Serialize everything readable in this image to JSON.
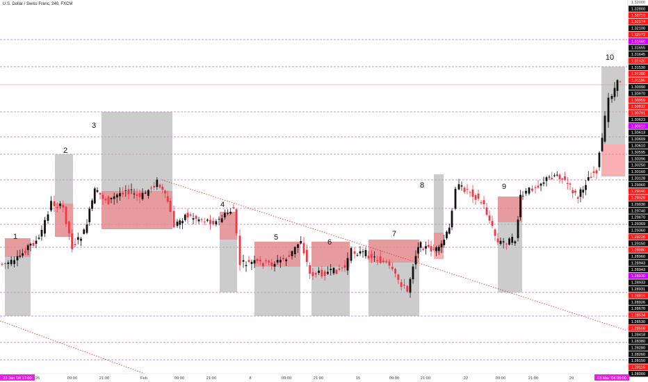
{
  "header": {
    "title": "U.S. Dollar / Swiss Franc, 240, FXCM"
  },
  "colors": {
    "bull": "#111111",
    "bear": "#f23645",
    "box_gray": "#b0b0b0",
    "box_red": "#f77c80",
    "level_line": "#9c27b0",
    "trend_line": "#e53935",
    "axis_bg": "#111111",
    "tag_red": "#ff1a1a",
    "tag_purple": "#cc00ff",
    "tag_magenta": "#e91ee9"
  },
  "chart_data": {
    "type": "candlestick",
    "title": "U.S. Dollar / Swiss Franc, 240, FXCM",
    "x_ticks": [
      "25",
      "09:00",
      "21:00",
      "Feb",
      "09:00",
      "21:00",
      "8",
      "09:00",
      "21:00",
      "15",
      "09:00",
      "21:00",
      "22",
      "09:00",
      "21:00",
      "29",
      "09:00"
    ],
    "x_start_label": "21 Jan '04  17:00",
    "x_end_label": "03 Mar '04  05:00",
    "price_labels": [
      {
        "text": "1.32000",
        "style": "plain"
      },
      {
        "text": "1.32800",
        "style": "dark"
      },
      {
        "text": "1.32710",
        "style": "red"
      },
      {
        "text": "1.32174",
        "style": "red"
      },
      {
        "text": "1.32100",
        "style": "dark"
      },
      {
        "text": "1.32072",
        "style": "red"
      },
      {
        "text": "1.31660",
        "style": "purple"
      },
      {
        "text": "1.31655",
        "style": "dark"
      },
      {
        "text": "1.31645",
        "style": "dark"
      },
      {
        "text": "1.31620",
        "style": "red"
      },
      {
        "text": "1.31530",
        "style": "dark"
      },
      {
        "text": "1.31200",
        "style": "red"
      },
      {
        "text": "1.31196",
        "style": "red"
      },
      {
        "text": "1.30990",
        "style": "dark"
      },
      {
        "text": "1.30970",
        "style": "dark"
      },
      {
        "text": "1.30959",
        "style": "red"
      },
      {
        "text": "1.30832",
        "style": "red"
      },
      {
        "text": "1.30791",
        "style": "red"
      },
      {
        "text": "1.30623",
        "style": "dark"
      },
      {
        "text": "1.30610",
        "style": "purple"
      },
      {
        "text": "1.30613",
        "style": "dark"
      },
      {
        "text": "1.30609",
        "style": "dark"
      },
      {
        "text": "1.30610",
        "style": "dark"
      },
      {
        "text": "1.30595",
        "style": "dark"
      },
      {
        "text": "1.30396",
        "style": "dark"
      },
      {
        "text": "1.30250",
        "style": "dark"
      },
      {
        "text": "1.30160",
        "style": "dark"
      },
      {
        "text": "1.30128",
        "style": "dark"
      },
      {
        "text": "1.29960",
        "style": "dark"
      },
      {
        "text": "1.29940",
        "style": "red"
      },
      {
        "text": "1.29928",
        "style": "red"
      },
      {
        "text": "1.29930",
        "style": "dark"
      },
      {
        "text": "1.29740",
        "style": "dark"
      },
      {
        "text": "1.29670",
        "style": "dark"
      },
      {
        "text": "1.29369",
        "style": "dark"
      },
      {
        "text": "1.29360",
        "style": "dark"
      },
      {
        "text": "1.29226",
        "style": "red"
      },
      {
        "text": "1.29150",
        "style": "dark"
      },
      {
        "text": "1.28980",
        "style": "red"
      },
      {
        "text": "1.28960",
        "style": "dark"
      },
      {
        "text": "1.28943",
        "style": "dark"
      },
      {
        "text": "1.28943",
        "style": "dark"
      },
      {
        "text": "1.28930",
        "style": "purple"
      },
      {
        "text": "1.28933",
        "style": "dark"
      },
      {
        "text": "1.28931",
        "style": "dark"
      },
      {
        "text": "1.28916",
        "style": "red"
      },
      {
        "text": "1.28926",
        "style": "dark"
      },
      {
        "text": "1.28670",
        "style": "dark"
      },
      {
        "text": "1.28534",
        "style": "red"
      },
      {
        "text": "1.28530",
        "style": "dark"
      },
      {
        "text": "1.28508",
        "style": "red"
      },
      {
        "text": "1.28418",
        "style": "dark"
      },
      {
        "text": "1.28380",
        "style": "dark"
      },
      {
        "text": "1.28280",
        "style": "dark"
      },
      {
        "text": "1.28260",
        "style": "dark"
      },
      {
        "text": "1.28150",
        "style": "dark"
      },
      {
        "text": "1.28116",
        "style": "red"
      },
      {
        "text": "1.28000",
        "style": "dark"
      }
    ],
    "annotations": [
      "1",
      "2",
      "3",
      "4",
      "5",
      "6",
      "7",
      "8",
      "9",
      "10"
    ],
    "grid": false,
    "legend": "none"
  }
}
